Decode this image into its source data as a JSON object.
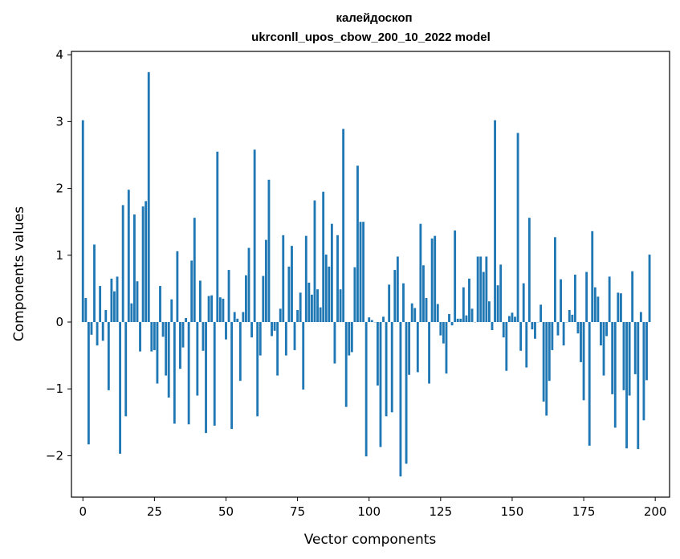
{
  "chart_data": {
    "type": "bar",
    "title": "калейдоскоп",
    "subtitle": "ukrconll_upos_cbow_200_10_2022 model",
    "xlabel": "Vector components",
    "ylabel": "Components values",
    "xlim": [
      -4,
      205
    ],
    "ylim": [
      -2.62,
      4.05
    ],
    "xticks": [
      0,
      25,
      50,
      75,
      100,
      125,
      150,
      175,
      200
    ],
    "yticks": [
      -2,
      -1,
      0,
      1,
      2,
      3,
      4
    ],
    "ytick_labels": [
      "−2",
      "−1",
      "0",
      "1",
      "2",
      "3",
      "4"
    ],
    "bar_color": "#1f77b4",
    "grid": false,
    "values": [
      3.02,
      0.36,
      -1.83,
      -0.19,
      1.16,
      -0.35,
      0.54,
      -0.28,
      0.18,
      -1.02,
      0.65,
      0.46,
      0.68,
      -1.97,
      1.75,
      -1.41,
      1.98,
      0.28,
      1.61,
      0.61,
      -0.44,
      1.73,
      1.81,
      3.74,
      -0.44,
      -0.42,
      -0.92,
      0.54,
      -0.22,
      -0.8,
      -1.13,
      0.34,
      -1.52,
      1.06,
      -0.7,
      -0.38,
      0.06,
      -1.53,
      0.92,
      1.56,
      -1.1,
      0.62,
      -0.43,
      -1.66,
      0.39,
      0.4,
      -1.55,
      2.55,
      0.37,
      0.35,
      -0.26,
      0.78,
      -1.6,
      0.15,
      0.05,
      -0.88,
      0.15,
      0.7,
      1.11,
      -0.23,
      2.58,
      -1.41,
      -0.5,
      0.69,
      1.23,
      2.13,
      -0.21,
      -0.13,
      -0.8,
      0.2,
      1.3,
      -0.5,
      0.83,
      1.14,
      -0.42,
      0.18,
      0.44,
      -1.01,
      1.29,
      0.59,
      0.41,
      1.82,
      0.49,
      0.22,
      1.95,
      1.01,
      0.83,
      1.47,
      -0.62,
      1.3,
      0.49,
      2.89,
      -1.27,
      -0.5,
      -0.45,
      0.82,
      2.34,
      1.5,
      1.5,
      -2.01,
      0.07,
      0.03,
      0.0,
      -0.95,
      -1.87,
      0.08,
      -1.41,
      0.56,
      -1.35,
      0.78,
      0.98,
      -2.31,
      0.58,
      -2.12,
      -0.79,
      0.28,
      0.21,
      -0.75,
      1.47,
      0.85,
      0.36,
      -0.92,
      1.25,
      1.29,
      0.27,
      -0.2,
      -0.32,
      -0.77,
      0.12,
      -0.05,
      1.37,
      0.05,
      0.05,
      0.52,
      0.1,
      0.65,
      0.2,
      0.0,
      0.98,
      0.98,
      0.75,
      0.98,
      0.31,
      -0.12,
      3.02,
      0.55,
      0.86,
      -0.23,
      -0.73,
      0.09,
      0.14,
      0.08,
      2.83,
      -0.43,
      0.58,
      -0.68,
      1.56,
      -0.11,
      -0.25,
      0.0,
      0.26,
      -1.19,
      -1.4,
      -0.88,
      -0.42,
      1.27,
      -0.2,
      0.64,
      -0.35,
      0.0,
      0.18,
      0.11,
      0.71,
      -0.17,
      -0.6,
      -1.17,
      0.75,
      -1.85,
      1.36,
      0.52,
      0.38,
      -0.35,
      -0.8,
      -0.21,
      0.68,
      -1.08,
      -1.58,
      0.44,
      0.43,
      -1.02,
      -1.89,
      -1.1,
      0.76,
      -0.78,
      -1.9,
      0.15,
      -1.47,
      -0.87,
      1.01
    ]
  }
}
